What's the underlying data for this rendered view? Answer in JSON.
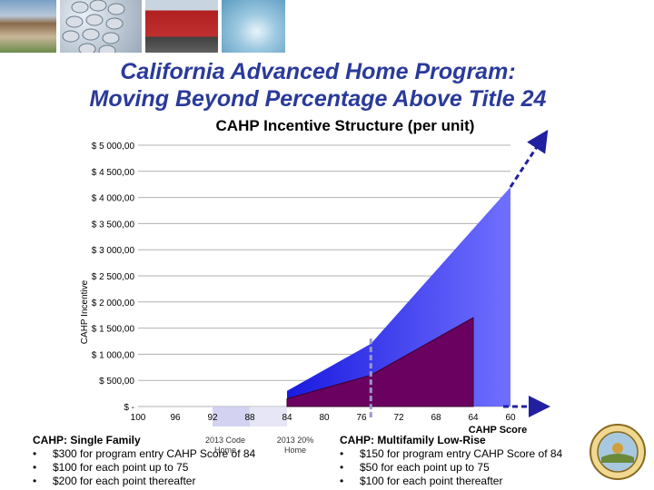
{
  "header": {
    "title_line1": "California Advanced Home Program:",
    "title_line2": "Moving Beyond Percentage Above Title 24",
    "subtitle": "CAHP Incentive Structure (per unit)"
  },
  "colors": {
    "title": "#2a3a9a",
    "single_family_fill": "#2222ee",
    "multifamily_fill": "#6a0060",
    "arrow": "#2020a0",
    "highlight": "#9999cc"
  },
  "chart_data": {
    "type": "area",
    "title": "",
    "xlabel": "CAHP Score",
    "ylabel": "CAHP Incentive",
    "x_ticks": [
      "100",
      "96",
      "92",
      "88",
      "84",
      "80",
      "76",
      "72",
      "68",
      "64",
      "60"
    ],
    "y_ticks": [
      "$ -",
      "$ 500,00",
      "$ 1 000,00",
      "$ 1 500,00",
      "$ 2 000,00",
      "$ 2 500,00",
      "$ 3 000,00",
      "$ 3 500,00",
      "$ 4 000,00",
      "$ 4 500,00",
      "$ 5 000,00"
    ],
    "xlim": [
      100,
      60
    ],
    "ylim": [
      0,
      5000
    ],
    "x_reversed": true,
    "grid": true,
    "series": [
      {
        "name": "CAHP: Single Family",
        "x": [
          84,
          75,
          60
        ],
        "y": [
          300,
          1200,
          4200
        ]
      },
      {
        "name": "CAHP: Multifamily Low-Rise",
        "x": [
          84,
          75,
          64
        ],
        "y": [
          150,
          600,
          1700
        ]
      }
    ],
    "annotations": [
      "2013 Code Home",
      "2013 20% Home"
    ]
  },
  "captions": {
    "single_family": {
      "heading": "CAHP: Single Family",
      "bullets": [
        "$300 for program entry CAHP Score of 84",
        "$100 for each point up to 75",
        "$200 for each point thereafter"
      ]
    },
    "multifamily": {
      "heading": "CAHP: Multifamily Low-Rise",
      "bullets": [
        "$150 for program entry CAHP Score of 84",
        "$50 for each point up to 75",
        "$100 for each point thereafter"
      ]
    },
    "bullet_char": "•",
    "note_code_home": "2013 Code Home",
    "note_20_home": "2013 20% Home"
  },
  "icons": [
    "house-photo",
    "phone-keypad-photo",
    "train-photo",
    "water-drop-photo",
    "state-seal-icon"
  ]
}
